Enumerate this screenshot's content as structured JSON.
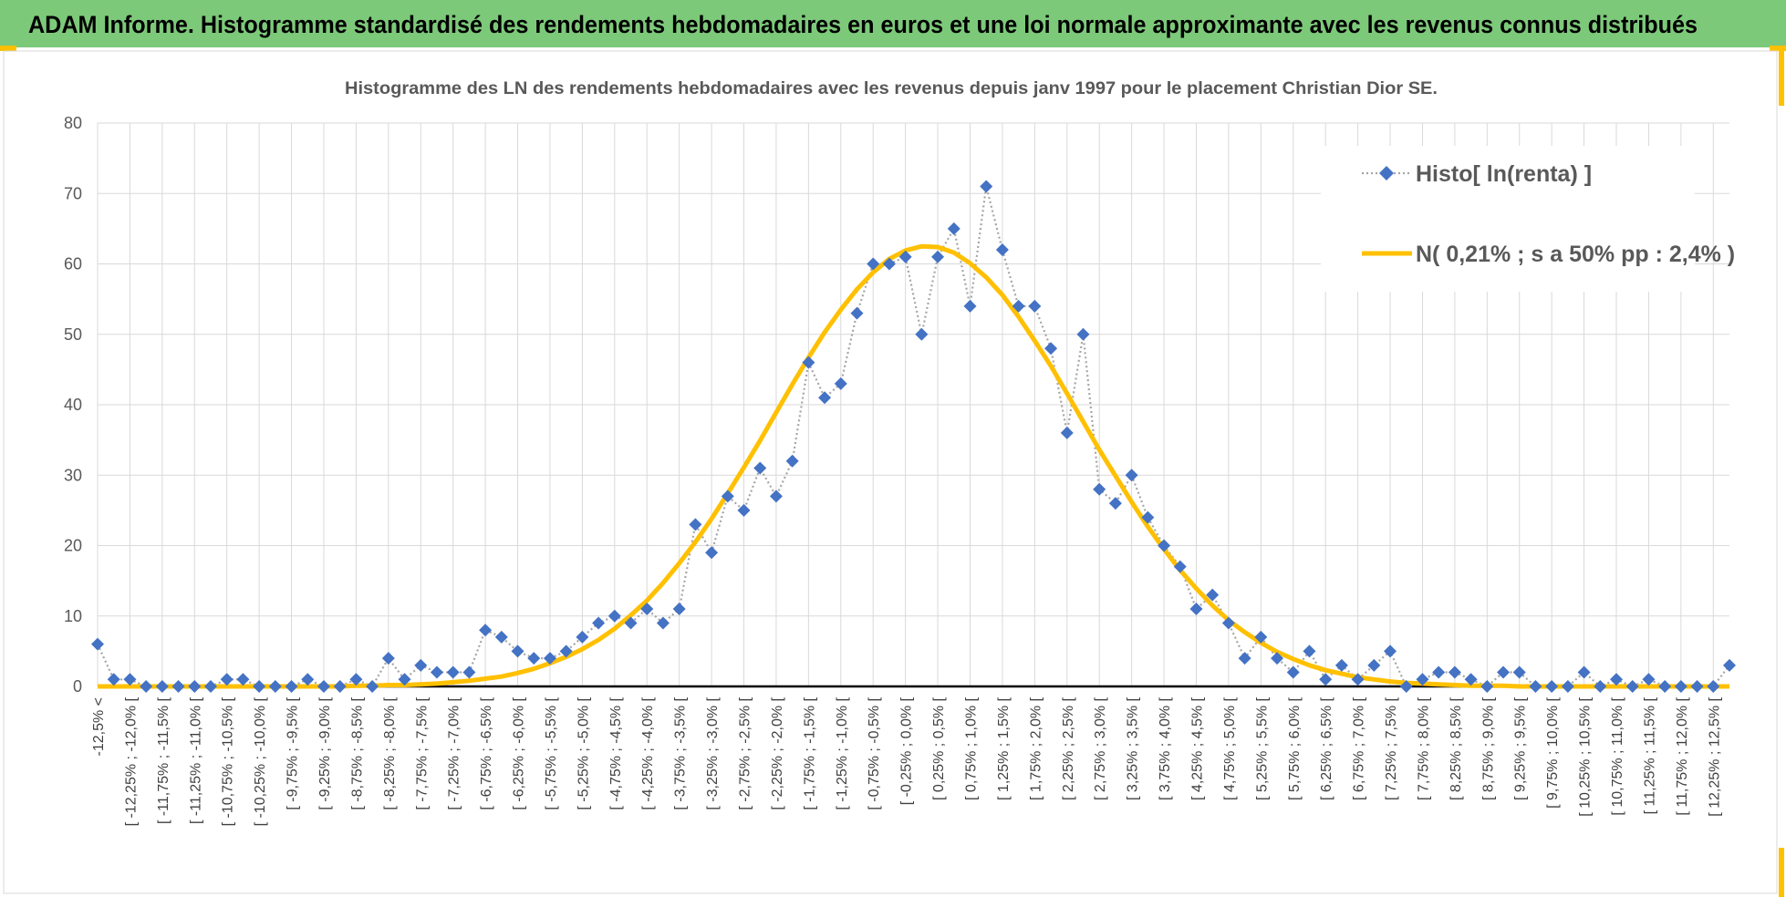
{
  "header": {
    "title": "ADAM Informe. Histogramme standardisé des rendements hebdomadaires en euros et une loi normale approximante avec les revenus connus distribués"
  },
  "chart_data": {
    "type": "line",
    "title": "Histogramme des LN des rendements hebdomadaires avec les revenus depuis janv 1997 pour le placement Christian Dior SE.",
    "categories": [
      "-12,5% <",
      null,
      "[ -12,25% ; -12,0% [",
      null,
      "[ -11,75% ; -11,5% [",
      null,
      "[ -11,25% ; -11,0% [",
      null,
      "[ -10,75% ; -10,5% [",
      null,
      "[ -10,25% ; -10,0% [",
      null,
      "[ -9,75% ; -9,5% [",
      null,
      "[ -9,25% ; -9,0% [",
      null,
      "[ -8,75% ; -8,5% [",
      null,
      "[ -8,25% ; -8,0% [",
      null,
      "[ -7,75% ; -7,5% [",
      null,
      "[ -7,25% ; -7,0% [",
      null,
      "[ -6,75% ; -6,5% [",
      null,
      "[ -6,25% ; -6,0% [",
      null,
      "[ -5,75% ; -5,5% [",
      null,
      "[ -5,25% ; -5,0% [",
      null,
      "[ -4,75% ; -4,5% [",
      null,
      "[ -4,25% ; -4,0% [",
      null,
      "[ -3,75% ; -3,5% [",
      null,
      "[ -3,25% ; -3,0% [",
      null,
      "[ -2,75% ; -2,5% [",
      null,
      "[ -2,25% ; -2,0% [",
      null,
      "[ -1,75% ; -1,5% [",
      null,
      "[ -1,25% ; -1,0% [",
      null,
      "[ -0,75% ; -0,5% [",
      null,
      "[ -0,25% ; 0,0% [",
      null,
      "[ 0,25% ; 0,5% [",
      null,
      "[ 0,75% ; 1,0% [",
      null,
      "[ 1,25% ; 1,5% [",
      null,
      "[ 1,75% ; 2,0% [",
      null,
      "[ 2,25% ; 2,5% [",
      null,
      "[ 2,75% ; 3,0% [",
      null,
      "[ 3,25% ; 3,5% [",
      null,
      "[ 3,75% ; 4,0% [",
      null,
      "[ 4,25% ; 4,5% [",
      null,
      "[ 4,75% ; 5,0% [",
      null,
      "[ 5,25% ; 5,5% [",
      null,
      "[ 5,75% ; 6,0% [",
      null,
      "[ 6,25% ; 6,5% [",
      null,
      "[ 6,75% ; 7,0% [",
      null,
      "[ 7,25% ; 7,5% [",
      null,
      "[ 7,75% ; 8,0% [",
      null,
      "[ 8,25% ; 8,5% [",
      null,
      "[ 8,75% ; 9,0% [",
      null,
      "[ 9,25% ; 9,5% [",
      null,
      "[ 9,75% ; 10,0% [",
      null,
      "[ 10,25% ; 10,5% [",
      null,
      "[ 10,75% ; 11,0% [",
      null,
      "[ 11,25% ; 11,5% [",
      null,
      "[ 11,75% ; 12,0% [",
      null,
      "[ 12,25% ; 12,5% [",
      null
    ],
    "series": [
      {
        "name": "Histo[ ln(renta) ]",
        "color": "#4472c4",
        "values": [
          6,
          1,
          1,
          0,
          0,
          0,
          0,
          0,
          1,
          1,
          0,
          0,
          0,
          1,
          0,
          0,
          1,
          0,
          4,
          1,
          3,
          2,
          2,
          2,
          8,
          7,
          5,
          4,
          4,
          5,
          7,
          9,
          10,
          9,
          11,
          9,
          11,
          23,
          19,
          27,
          25,
          31,
          27,
          32,
          46,
          41,
          43,
          53,
          60,
          60,
          61,
          50,
          61,
          65,
          54,
          71,
          62,
          54,
          54,
          48,
          36,
          50,
          28,
          26,
          30,
          24,
          20,
          17,
          11,
          13,
          9,
          4,
          7,
          4,
          2,
          5,
          1,
          3,
          1,
          3,
          5,
          0,
          1,
          2,
          2,
          1,
          0,
          2,
          2,
          0,
          0,
          0,
          2,
          0,
          1,
          0,
          1,
          0,
          0,
          0,
          0,
          3
        ]
      },
      {
        "name": "N( 0,21% ; s a 50% pp : 2,4% )",
        "color": "#ffc000",
        "values": [
          0,
          0,
          0,
          0,
          0,
          0,
          0,
          0,
          0,
          0,
          0,
          0,
          0,
          0,
          0,
          0,
          0.1,
          0.1,
          0.2,
          0.2,
          0.3,
          0.4,
          0.6,
          0.8,
          1.1,
          1.4,
          1.9,
          2.5,
          3.3,
          4.2,
          5.3,
          6.6,
          8.2,
          10.1,
          12.2,
          14.7,
          17.5,
          20.5,
          23.8,
          27.4,
          31.1,
          34.9,
          38.9,
          42.9,
          46.7,
          50.3,
          53.5,
          56.4,
          58.8,
          60.7,
          61.9,
          62.5,
          62.4,
          61.6,
          60.1,
          58.1,
          55.6,
          52.5,
          49.1,
          45.5,
          41.6,
          37.6,
          33.6,
          29.9,
          26.2,
          22.7,
          19.5,
          16.5,
          13.9,
          11.5,
          9.4,
          7.7,
          6.2,
          4.9,
          3.9,
          3.0,
          2.3,
          1.8,
          1.3,
          1.0,
          0.7,
          0.5,
          0.4,
          0.3,
          0.2,
          0.1,
          0.1,
          0.1,
          0,
          0,
          0,
          0,
          0,
          0,
          0,
          0,
          0,
          0,
          0,
          0,
          0,
          0
        ]
      }
    ],
    "ylim": [
      0,
      80
    ],
    "yticks": [
      0,
      10,
      20,
      30,
      40,
      50,
      60,
      70,
      80
    ],
    "grid": true
  }
}
